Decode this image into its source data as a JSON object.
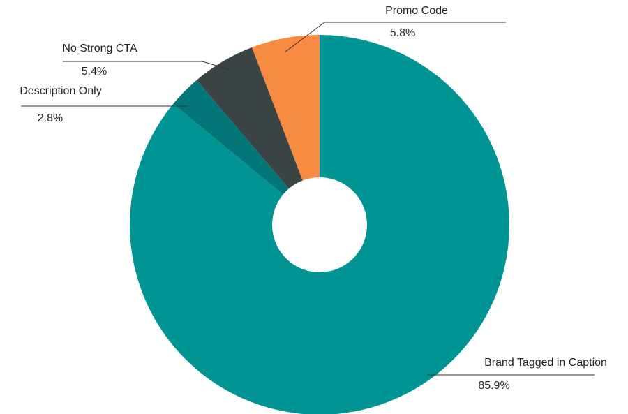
{
  "chart_data": {
    "type": "pie",
    "categories": [
      "Brand Tagged in Caption",
      "Description Only",
      "No Strong CTA",
      "Promo Code"
    ],
    "values": [
      85.9,
      2.8,
      5.4,
      5.8
    ],
    "value_labels": [
      "85.9%",
      "2.8%",
      "5.4%",
      "5.8%"
    ],
    "colors": [
      "#019494",
      "#03767a",
      "#3b4444",
      "#f68b41"
    ]
  }
}
